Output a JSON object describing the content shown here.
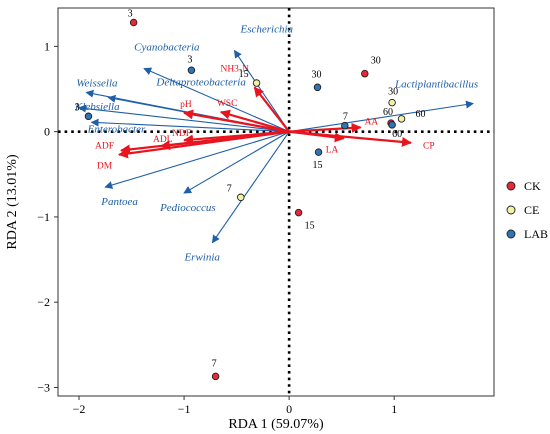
{
  "chart_data": {
    "type": "scatter",
    "title": "",
    "xlabel": "RDA 1 (59.07%)",
    "ylabel": "RDA 2 (13.01%)",
    "xlim": [
      -2.2,
      1.95
    ],
    "ylim": [
      -3.1,
      1.45
    ],
    "xticks": [
      -2,
      -1,
      0,
      1
    ],
    "yticks": [
      -3,
      -2,
      -1,
      0,
      1
    ],
    "xtick_labels": [
      "−2",
      "−1",
      "0",
      "1"
    ],
    "ytick_labels": [
      "−3",
      "−2",
      "−1",
      "0",
      "1"
    ],
    "grid": false,
    "reference_lines": {
      "x": 0,
      "y": 0,
      "style": "dotted"
    },
    "legend_position": "right",
    "species_vectors": [
      {
        "label": "Escherichia",
        "x": -0.52,
        "y": 0.95
      },
      {
        "label": "Cyanobacteria",
        "x": -1.38,
        "y": 0.74
      },
      {
        "label": "Weissella",
        "x": -1.93,
        "y": 0.46
      },
      {
        "label": "Deltaproteobacteria",
        "x": -1.72,
        "y": 0.4
      },
      {
        "label": "Klebsiella",
        "x": -2.0,
        "y": 0.28
      },
      {
        "label": "Enterobacter",
        "x": -1.88,
        "y": 0.11
      },
      {
        "label": "Lactiplantibacillus",
        "x": 1.75,
        "y": 0.33
      },
      {
        "label": "Pantoea",
        "x": -1.75,
        "y": -0.65
      },
      {
        "label": "Pediococcus",
        "x": -1.0,
        "y": -0.72
      },
      {
        "label": "Erwinia",
        "x": -0.73,
        "y": -1.3
      }
    ],
    "environment_vectors": [
      {
        "label": "NH3-N",
        "x": -0.33,
        "y": 0.52
      },
      {
        "label": "pH",
        "x": -1.0,
        "y": 0.22
      },
      {
        "label": "WSC",
        "x": -0.65,
        "y": 0.23
      },
      {
        "label": "NDF",
        "x": -1.0,
        "y": -0.1
      },
      {
        "label": "ADL",
        "x": -1.22,
        "y": -0.17
      },
      {
        "label": "ADF",
        "x": -1.6,
        "y": -0.22
      },
      {
        "label": "DM",
        "x": -1.62,
        "y": -0.27
      },
      {
        "label": "AA",
        "x": 0.68,
        "y": 0.05
      },
      {
        "label": "LA",
        "x": 0.52,
        "y": -0.08
      },
      {
        "label": "CP",
        "x": 1.16,
        "y": -0.13
      }
    ],
    "series": [
      {
        "name": "CK",
        "color": "#E8283A",
        "points": [
          {
            "x": -1.48,
            "y": 1.28,
            "label": "3"
          },
          {
            "x": 0.72,
            "y": 0.68,
            "label": "30"
          },
          {
            "x": 0.97,
            "y": 0.1,
            "label": "60"
          },
          {
            "x": 0.09,
            "y": -0.95,
            "label": "15"
          },
          {
            "x": -0.7,
            "y": -2.87,
            "label": "7"
          }
        ]
      },
      {
        "name": "CE",
        "color": "#F2F2A6",
        "points": [
          {
            "x": -0.31,
            "y": 0.57,
            "label": "15"
          },
          {
            "x": 0.98,
            "y": 0.34,
            "label": "30"
          },
          {
            "x": 1.07,
            "y": 0.15,
            "label": "60"
          },
          {
            "x": -0.46,
            "y": -0.77,
            "label": "7"
          }
        ]
      },
      {
        "name": "LAB",
        "color": "#2F74B5",
        "points": [
          {
            "x": -0.93,
            "y": 0.72,
            "label": "3"
          },
          {
            "x": -1.91,
            "y": 0.18,
            "label": "3"
          },
          {
            "x": 0.27,
            "y": 0.52,
            "label": "30"
          },
          {
            "x": 0.53,
            "y": 0.07,
            "label": "7"
          },
          {
            "x": 0.98,
            "y": 0.08,
            "label": "60"
          },
          {
            "x": 0.28,
            "y": -0.24,
            "label": "15"
          }
        ]
      }
    ]
  }
}
